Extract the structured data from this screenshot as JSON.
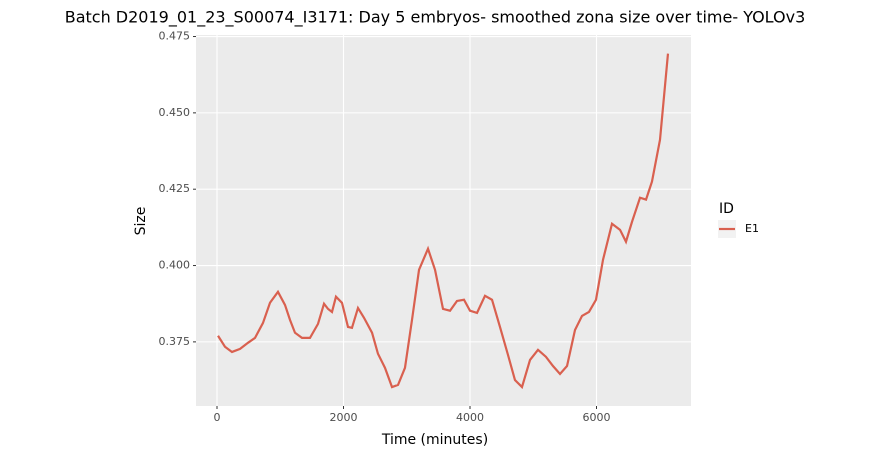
{
  "chart_data": {
    "type": "line",
    "title": "Batch D2019_01_23_S00074_I3171: Day 5 embryos- smoothed zona size over time- YOLOv3",
    "x_label": "Time (minutes)",
    "y_label": "Size",
    "legend_title": "ID",
    "legend_position": "right",
    "grid": true,
    "x": [
      16,
      126,
      237,
      364,
      490,
      601,
      727,
      838,
      964,
      1075,
      1154,
      1233,
      1344,
      1470,
      1597,
      1692,
      1755,
      1818,
      1881,
      1976,
      2071,
      2134,
      2229,
      2324,
      2451,
      2545,
      2656,
      2767,
      2862,
      2972,
      3083,
      3194,
      3336,
      3447,
      3573,
      3684,
      3794,
      3905,
      4000,
      4111,
      4237,
      4348,
      4474,
      4601,
      4711,
      4822,
      4949,
      5075,
      5201,
      5312,
      5423,
      5534,
      5660,
      5771,
      5881,
      5992,
      6103,
      6245,
      6372,
      6466,
      6561,
      6688,
      6783,
      6877,
      7004,
      7130
    ],
    "series": [
      {
        "name": "E1",
        "color": "#d9604f",
        "values": [
          0.377,
          0.3734,
          0.3717,
          0.3727,
          0.3747,
          0.3763,
          0.3812,
          0.3878,
          0.3914,
          0.3871,
          0.3822,
          0.378,
          0.3763,
          0.3763,
          0.3809,
          0.3875,
          0.3858,
          0.3848,
          0.3898,
          0.3878,
          0.3799,
          0.3796,
          0.3861,
          0.3829,
          0.378,
          0.3711,
          0.3665,
          0.3602,
          0.3609,
          0.3665,
          0.3822,
          0.3986,
          0.4055,
          0.3986,
          0.3858,
          0.3852,
          0.3884,
          0.3888,
          0.3852,
          0.3845,
          0.3901,
          0.3888,
          0.3799,
          0.3707,
          0.3625,
          0.3602,
          0.3691,
          0.3724,
          0.3701,
          0.3671,
          0.3645,
          0.3671,
          0.3789,
          0.3835,
          0.3848,
          0.3888,
          0.4019,
          0.4137,
          0.4117,
          0.4078,
          0.4143,
          0.4222,
          0.4216,
          0.4275,
          0.4412,
          0.4694
        ]
      }
    ],
    "xlim": [
      -332,
      7494
    ],
    "xticks": [
      0,
      2000,
      4000,
      6000
    ],
    "ylim": [
      0.354,
      0.4755
    ],
    "yticks": [
      0.375,
      {
        "value": 0.4,
        "label": "0.400"
      },
      0.425,
      {
        "value": 0.45,
        "label": "0.450"
      },
      0.475
    ]
  }
}
